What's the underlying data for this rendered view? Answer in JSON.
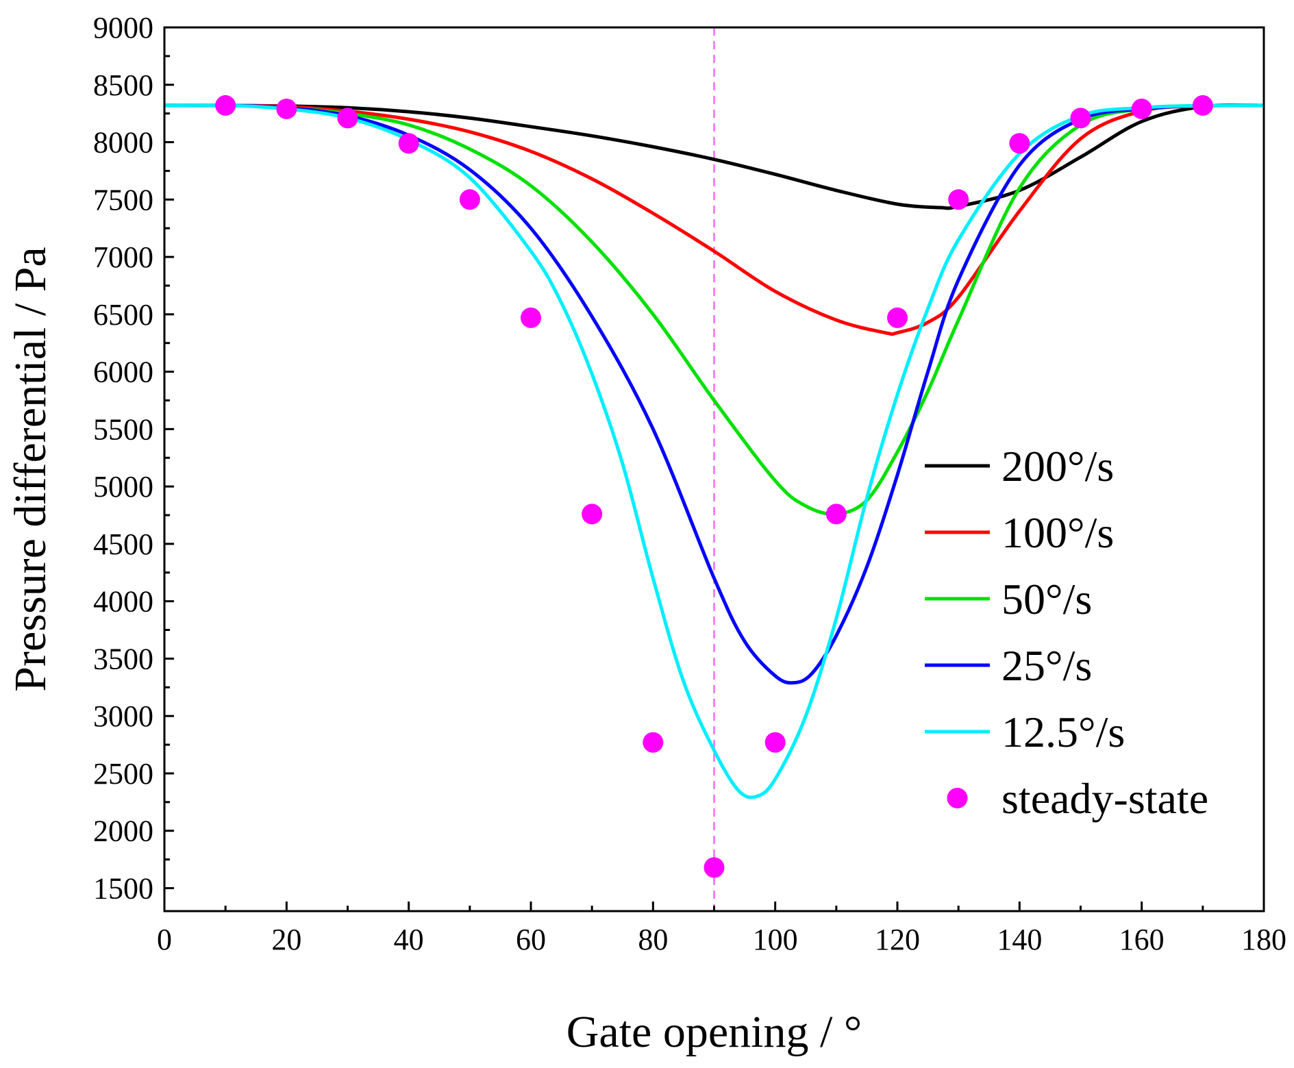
{
  "chart_data": {
    "type": "line",
    "title": "",
    "xlabel": "Gate opening / °",
    "ylabel": "Pressure differential / Pa",
    "xlim": [
      0,
      180
    ],
    "ylim": [
      1300,
      9000
    ],
    "x_ticks": [
      0,
      20,
      40,
      60,
      80,
      100,
      120,
      140,
      160,
      180
    ],
    "y_ticks": [
      1500,
      2000,
      2500,
      3000,
      3500,
      4000,
      4500,
      5000,
      5500,
      6000,
      6500,
      7000,
      7500,
      8000,
      8500,
      9000
    ],
    "grid": false,
    "legend_position": "right",
    "reference_line": {
      "x": 90,
      "color": "#ff66ff",
      "style": "dashed"
    },
    "series": [
      {
        "name": "200°/s",
        "color": "#000000",
        "x": [
          0,
          10,
          20,
          30,
          40,
          50,
          60,
          70,
          80,
          90,
          100,
          110,
          120,
          127,
          130,
          140,
          150,
          160,
          170,
          180
        ],
        "y": [
          8320,
          8320,
          8315,
          8300,
          8265,
          8210,
          8135,
          8055,
          7960,
          7850,
          7720,
          7580,
          7460,
          7430,
          7440,
          7580,
          7870,
          8180,
          8310,
          8320
        ]
      },
      {
        "name": "100°/s",
        "color": "#ff0000",
        "x": [
          0,
          10,
          20,
          30,
          40,
          50,
          60,
          70,
          80,
          90,
          100,
          110,
          118,
          120,
          125,
          130,
          140,
          150,
          160,
          170,
          180
        ],
        "y": [
          8320,
          8320,
          8310,
          8270,
          8200,
          8090,
          7920,
          7680,
          7380,
          7050,
          6700,
          6450,
          6340,
          6340,
          6430,
          6650,
          7400,
          8030,
          8270,
          8315,
          8320
        ]
      },
      {
        "name": "50°/s",
        "color": "#00e000",
        "x": [
          0,
          10,
          20,
          30,
          40,
          50,
          60,
          70,
          80,
          90,
          100,
          105,
          110,
          115,
          120,
          125,
          130,
          140,
          150,
          160,
          170,
          180
        ],
        "y": [
          8320,
          8320,
          8300,
          8250,
          8150,
          7940,
          7620,
          7130,
          6500,
          5750,
          5050,
          4830,
          4760,
          4880,
          5300,
          5830,
          6450,
          7600,
          8150,
          8290,
          8318,
          8320
        ]
      },
      {
        "name": "25°/s",
        "color": "#0000ff",
        "x": [
          0,
          10,
          20,
          30,
          40,
          50,
          60,
          70,
          80,
          90,
          95,
          100,
          103,
          106,
          110,
          115,
          120,
          125,
          130,
          140,
          150,
          160,
          170,
          180
        ],
        "y": [
          8320,
          8320,
          8300,
          8230,
          8060,
          7760,
          7250,
          6480,
          5500,
          4200,
          3650,
          3350,
          3290,
          3370,
          3700,
          4300,
          5100,
          6000,
          6800,
          7800,
          8200,
          8290,
          8318,
          8320
        ]
      },
      {
        "name": "12.5°/s",
        "color": "#00eeff",
        "x": [
          0,
          10,
          20,
          30,
          40,
          50,
          60,
          65,
          70,
          75,
          80,
          85,
          90,
          94,
          97,
          100,
          105,
          110,
          115,
          120,
          125,
          130,
          140,
          150,
          160,
          170,
          180
        ],
        "y": [
          8320,
          8320,
          8290,
          8210,
          8020,
          7690,
          7050,
          6600,
          5980,
          5200,
          4200,
          3300,
          2700,
          2350,
          2300,
          2450,
          3000,
          3850,
          4900,
          5800,
          6550,
          7150,
          7900,
          8230,
          8300,
          8318,
          8320
        ]
      }
    ],
    "scatter": {
      "name": "steady-state",
      "color": "#ff00ff",
      "x": [
        10,
        20,
        30,
        40,
        50,
        60,
        70,
        80,
        90,
        100,
        110,
        120,
        130,
        140,
        150,
        160,
        170
      ],
      "y": [
        8320,
        8290,
        8210,
        7990,
        7500,
        6470,
        4760,
        2770,
        1680,
        2770,
        4760,
        6470,
        7500,
        7990,
        8210,
        8290,
        8320
      ]
    }
  }
}
